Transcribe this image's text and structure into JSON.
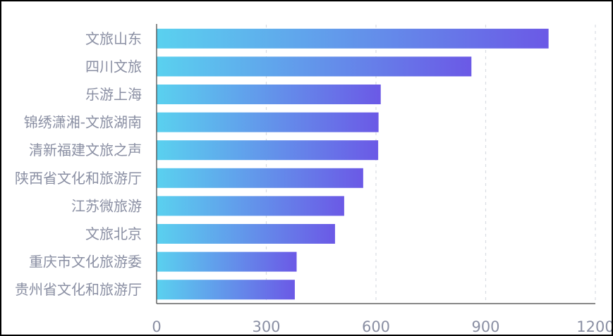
{
  "colors": {
    "bar_start": "#5ad1ef",
    "bar_end": "#6b59e6",
    "grid": "#d8dbe2",
    "axis": "#404040",
    "label": "#8a8fa3"
  },
  "chart_data": {
    "type": "bar",
    "orientation": "horizontal",
    "title": "",
    "xlabel": "",
    "ylabel": "",
    "categories": [
      "文旅山东",
      "四川文旅",
      "乐游上海",
      "锦绣潇湘-文旅湖南",
      "清新福建文旅之声",
      "陕西省文化和旅游厅",
      "江苏微旅游",
      "文旅北京",
      "重庆市文化旅游委",
      "贵州省文化和旅游厅"
    ],
    "values": [
      1072,
      861,
      613,
      607,
      606,
      565,
      513,
      488,
      383,
      378
    ],
    "xlim": [
      0,
      1200
    ],
    "xticks": [
      0,
      300,
      600,
      900,
      1200
    ],
    "tick_labels": [
      "0",
      "300",
      "600",
      "900",
      "1200"
    ],
    "grid": "vertical dashed",
    "legend": "none"
  }
}
